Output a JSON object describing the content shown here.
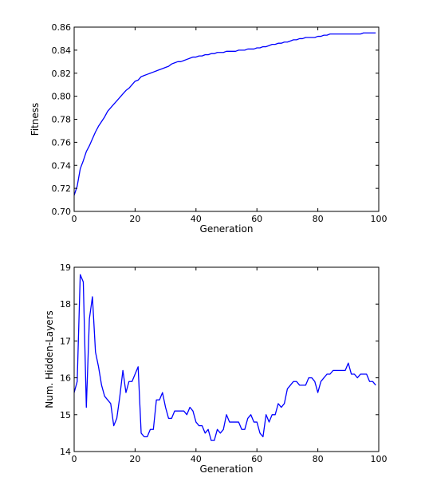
{
  "colors": {
    "series": "#0000ff",
    "axes": "#000000",
    "background": "#ffffff"
  },
  "chart_data": [
    {
      "type": "line",
      "xlabel": "Generation",
      "ylabel": "Fitness",
      "xlim": [
        0,
        100
      ],
      "ylim": [
        0.7,
        0.86
      ],
      "xticks": [
        0,
        20,
        40,
        60,
        80,
        100
      ],
      "yticks": [
        0.7,
        0.72,
        0.74,
        0.76,
        0.78,
        0.8,
        0.82,
        0.84,
        0.86
      ],
      "xtick_labels": [
        "0",
        "20",
        "40",
        "60",
        "80",
        "100"
      ],
      "ytick_labels": [
        "0.70",
        "0.72",
        "0.74",
        "0.76",
        "0.78",
        "0.80",
        "0.82",
        "0.84",
        "0.86"
      ],
      "grid": false,
      "series": [
        {
          "x": [
            0,
            1,
            2,
            3,
            4,
            5,
            6,
            7,
            8,
            9,
            10,
            11,
            12,
            13,
            14,
            15,
            16,
            17,
            18,
            19,
            20,
            21,
            22,
            23,
            24,
            25,
            26,
            27,
            28,
            29,
            30,
            31,
            32,
            33,
            34,
            35,
            36,
            37,
            38,
            39,
            40,
            41,
            42,
            43,
            44,
            45,
            46,
            47,
            48,
            49,
            50,
            51,
            52,
            53,
            54,
            55,
            56,
            57,
            58,
            59,
            60,
            61,
            62,
            63,
            64,
            65,
            66,
            67,
            68,
            69,
            70,
            71,
            72,
            73,
            74,
            75,
            76,
            77,
            78,
            79,
            80,
            81,
            82,
            83,
            84,
            85,
            86,
            87,
            88,
            89,
            90,
            91,
            92,
            93,
            94,
            95,
            96,
            97,
            98,
            99
          ],
          "y": [
            0.714,
            0.722,
            0.737,
            0.744,
            0.752,
            0.757,
            0.763,
            0.769,
            0.774,
            0.778,
            0.782,
            0.787,
            0.79,
            0.793,
            0.796,
            0.799,
            0.802,
            0.805,
            0.807,
            0.81,
            0.813,
            0.814,
            0.817,
            0.818,
            0.819,
            0.82,
            0.821,
            0.822,
            0.823,
            0.824,
            0.825,
            0.826,
            0.828,
            0.829,
            0.83,
            0.83,
            0.831,
            0.832,
            0.833,
            0.834,
            0.834,
            0.835,
            0.835,
            0.836,
            0.836,
            0.837,
            0.837,
            0.838,
            0.838,
            0.838,
            0.839,
            0.839,
            0.839,
            0.839,
            0.84,
            0.84,
            0.84,
            0.841,
            0.841,
            0.841,
            0.842,
            0.842,
            0.843,
            0.843,
            0.844,
            0.845,
            0.845,
            0.846,
            0.846,
            0.847,
            0.847,
            0.848,
            0.849,
            0.849,
            0.85,
            0.85,
            0.851,
            0.851,
            0.851,
            0.851,
            0.852,
            0.852,
            0.853,
            0.853,
            0.854,
            0.854,
            0.854,
            0.854,
            0.854,
            0.854,
            0.854,
            0.854,
            0.854,
            0.854,
            0.854,
            0.855,
            0.855,
            0.855,
            0.855,
            0.855
          ]
        }
      ]
    },
    {
      "type": "line",
      "xlabel": "Generation",
      "ylabel": "Num. Hidden-Layers",
      "xlim": [
        0,
        100
      ],
      "ylim": [
        14,
        19
      ],
      "xticks": [
        0,
        20,
        40,
        60,
        80,
        100
      ],
      "yticks": [
        14,
        15,
        16,
        17,
        18,
        19
      ],
      "xtick_labels": [
        "0",
        "20",
        "40",
        "60",
        "80",
        "100"
      ],
      "ytick_labels": [
        "14",
        "15",
        "16",
        "17",
        "18",
        "19"
      ],
      "grid": false,
      "series": [
        {
          "x": [
            0,
            1,
            2,
            3,
            4,
            5,
            6,
            7,
            8,
            9,
            10,
            11,
            12,
            13,
            14,
            15,
            16,
            17,
            18,
            19,
            20,
            21,
            22,
            23,
            24,
            25,
            26,
            27,
            28,
            29,
            30,
            31,
            32,
            33,
            34,
            35,
            36,
            37,
            38,
            39,
            40,
            41,
            42,
            43,
            44,
            45,
            46,
            47,
            48,
            49,
            50,
            51,
            52,
            53,
            54,
            55,
            56,
            57,
            58,
            59,
            60,
            61,
            62,
            63,
            64,
            65,
            66,
            67,
            68,
            69,
            70,
            71,
            72,
            73,
            74,
            75,
            76,
            77,
            78,
            79,
            80,
            81,
            82,
            83,
            84,
            85,
            86,
            87,
            88,
            89,
            90,
            91,
            92,
            93,
            94,
            95,
            96,
            97,
            98,
            99
          ],
          "y": [
            15.6,
            15.9,
            18.8,
            18.6,
            15.2,
            17.6,
            18.2,
            16.7,
            16.3,
            15.8,
            15.5,
            15.4,
            15.3,
            14.7,
            14.9,
            15.5,
            16.2,
            15.6,
            15.9,
            15.9,
            16.1,
            16.3,
            14.5,
            14.4,
            14.4,
            14.6,
            14.6,
            15.4,
            15.4,
            15.6,
            15.2,
            14.9,
            14.9,
            15.1,
            15.1,
            15.1,
            15.1,
            15.0,
            15.2,
            15.1,
            14.8,
            14.7,
            14.7,
            14.5,
            14.6,
            14.3,
            14.3,
            14.6,
            14.5,
            14.6,
            15.0,
            14.8,
            14.8,
            14.8,
            14.8,
            14.6,
            14.6,
            14.9,
            15.0,
            14.8,
            14.8,
            14.5,
            14.4,
            15.0,
            14.8,
            15.0,
            15.0,
            15.3,
            15.2,
            15.3,
            15.7,
            15.8,
            15.9,
            15.9,
            15.8,
            15.8,
            15.8,
            16.0,
            16.0,
            15.9,
            15.6,
            15.9,
            16.0,
            16.1,
            16.1,
            16.2,
            16.2,
            16.2,
            16.2,
            16.2,
            16.4,
            16.1,
            16.1,
            16.0,
            16.1,
            16.1,
            16.1,
            15.9,
            15.9,
            15.8
          ]
        }
      ]
    }
  ]
}
